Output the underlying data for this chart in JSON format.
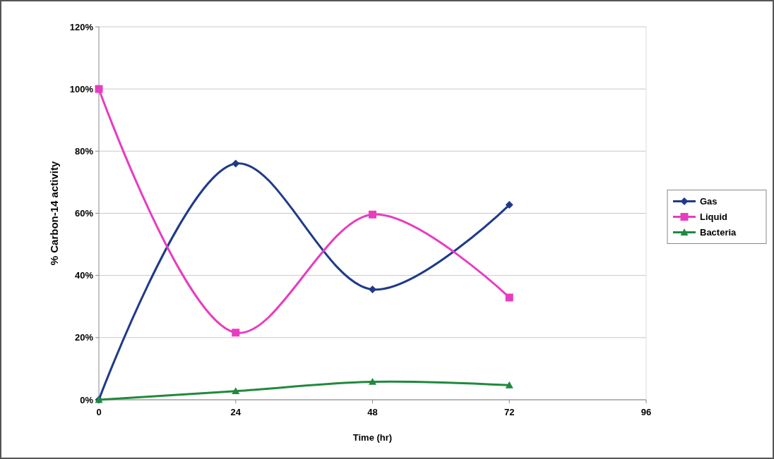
{
  "chart_data": {
    "type": "line",
    "xlabel": "Time (hr)",
    "ylabel": "% Carbon-14 activity",
    "x": [
      0,
      24,
      48,
      72
    ],
    "xlim": [
      0,
      96
    ],
    "xticks": [
      0,
      24,
      48,
      72,
      96
    ],
    "ylim": [
      0,
      120
    ],
    "yticks": [
      {
        "value": 0,
        "label": "0%"
      },
      {
        "value": 20,
        "label": "20%"
      },
      {
        "value": 40,
        "label": "40%"
      },
      {
        "value": 60,
        "label": "60%"
      },
      {
        "value": 80,
        "label": "80%"
      },
      {
        "value": 100,
        "label": "100%"
      },
      {
        "value": 120,
        "label": "120%"
      }
    ],
    "grid": "y",
    "legend": "right",
    "series": [
      {
        "name": "Gas",
        "color": "#1f3a8a",
        "marker": "diamond",
        "values": [
          0,
          76,
          35.5,
          62.7
        ]
      },
      {
        "name": "Liquid",
        "color": "#e83cc0",
        "marker": "square",
        "values": [
          100,
          21.6,
          59.6,
          32.9
        ]
      },
      {
        "name": "Bacteria",
        "color": "#1f8a3c",
        "marker": "triangle",
        "values": [
          0,
          2.8,
          5.8,
          4.7
        ]
      }
    ]
  }
}
